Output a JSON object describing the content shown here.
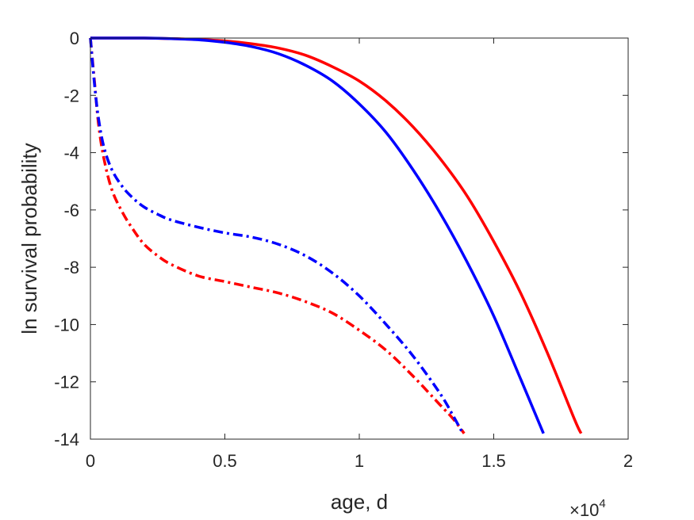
{
  "chart_data": {
    "type": "line",
    "title": "",
    "xlabel": "age, d",
    "ylabel": "ln survival probability",
    "x_multiplier_label": {
      "base": "×10",
      "exponent": "4"
    },
    "xlim": [
      0,
      20000
    ],
    "ylim": [
      -14,
      0
    ],
    "x_ticks": [
      0,
      5000,
      10000,
      15000,
      20000
    ],
    "x_tick_labels": [
      "0",
      "0.5",
      "1",
      "1.5",
      "2"
    ],
    "y_ticks": [
      0,
      -2,
      -4,
      -6,
      -8,
      -10,
      -12,
      -14
    ],
    "y_tick_labels": [
      "0",
      "-2",
      "-4",
      "-6",
      "-8",
      "-10",
      "-12",
      "-14"
    ],
    "grid": false,
    "box": true,
    "series": [
      {
        "color": "#ff0000",
        "style": "solid",
        "x": [
          0,
          1000,
          2000,
          3000,
          4000,
          5000,
          6000,
          7000,
          8000,
          9000,
          10000,
          11000,
          12000,
          13000,
          14000,
          15000,
          16000,
          17000,
          18000,
          18250
        ],
        "y": [
          0,
          0,
          0,
          -0.02,
          -0.05,
          -0.1,
          -0.2,
          -0.35,
          -0.6,
          -1.0,
          -1.5,
          -2.2,
          -3.1,
          -4.2,
          -5.5,
          -7.1,
          -8.9,
          -11.0,
          -13.3,
          -13.8
        ]
      },
      {
        "color": "#0000ff",
        "style": "solid",
        "x": [
          0,
          1000,
          2000,
          3000,
          4000,
          5000,
          6000,
          7000,
          8000,
          9000,
          10000,
          11000,
          12000,
          13000,
          14000,
          15000,
          16000,
          16850
        ],
        "y": [
          0,
          0,
          0,
          -0.02,
          -0.06,
          -0.15,
          -0.3,
          -0.55,
          -0.95,
          -1.5,
          -2.3,
          -3.3,
          -4.6,
          -6.1,
          -7.8,
          -9.7,
          -11.9,
          -13.8
        ]
      },
      {
        "color": "#ff0000",
        "style": "dashdot",
        "x": [
          0,
          150,
          300,
          500,
          800,
          1200,
          1600,
          2000,
          2500,
          3000,
          4000,
          5000,
          6000,
          7000,
          8000,
          9000,
          10000,
          11000,
          12000,
          13000,
          13500,
          13900
        ],
        "y": [
          0,
          -1.5,
          -3.0,
          -4.2,
          -5.3,
          -6.1,
          -6.7,
          -7.2,
          -7.6,
          -7.9,
          -8.3,
          -8.5,
          -8.7,
          -8.9,
          -9.2,
          -9.6,
          -10.2,
          -10.9,
          -11.8,
          -12.8,
          -13.3,
          -13.8
        ]
      },
      {
        "color": "#0000ff",
        "style": "dashdot",
        "x": [
          0,
          150,
          300,
          500,
          800,
          1200,
          1600,
          2000,
          2500,
          3000,
          4000,
          5000,
          6000,
          7000,
          8000,
          9000,
          10000,
          11000,
          12000,
          13000,
          13500,
          13850
        ],
        "y": [
          0,
          -1.6,
          -2.8,
          -3.8,
          -4.6,
          -5.2,
          -5.6,
          -5.9,
          -6.15,
          -6.35,
          -6.6,
          -6.8,
          -6.95,
          -7.2,
          -7.6,
          -8.2,
          -9.0,
          -10.0,
          -11.1,
          -12.4,
          -13.2,
          -13.8
        ]
      }
    ]
  }
}
